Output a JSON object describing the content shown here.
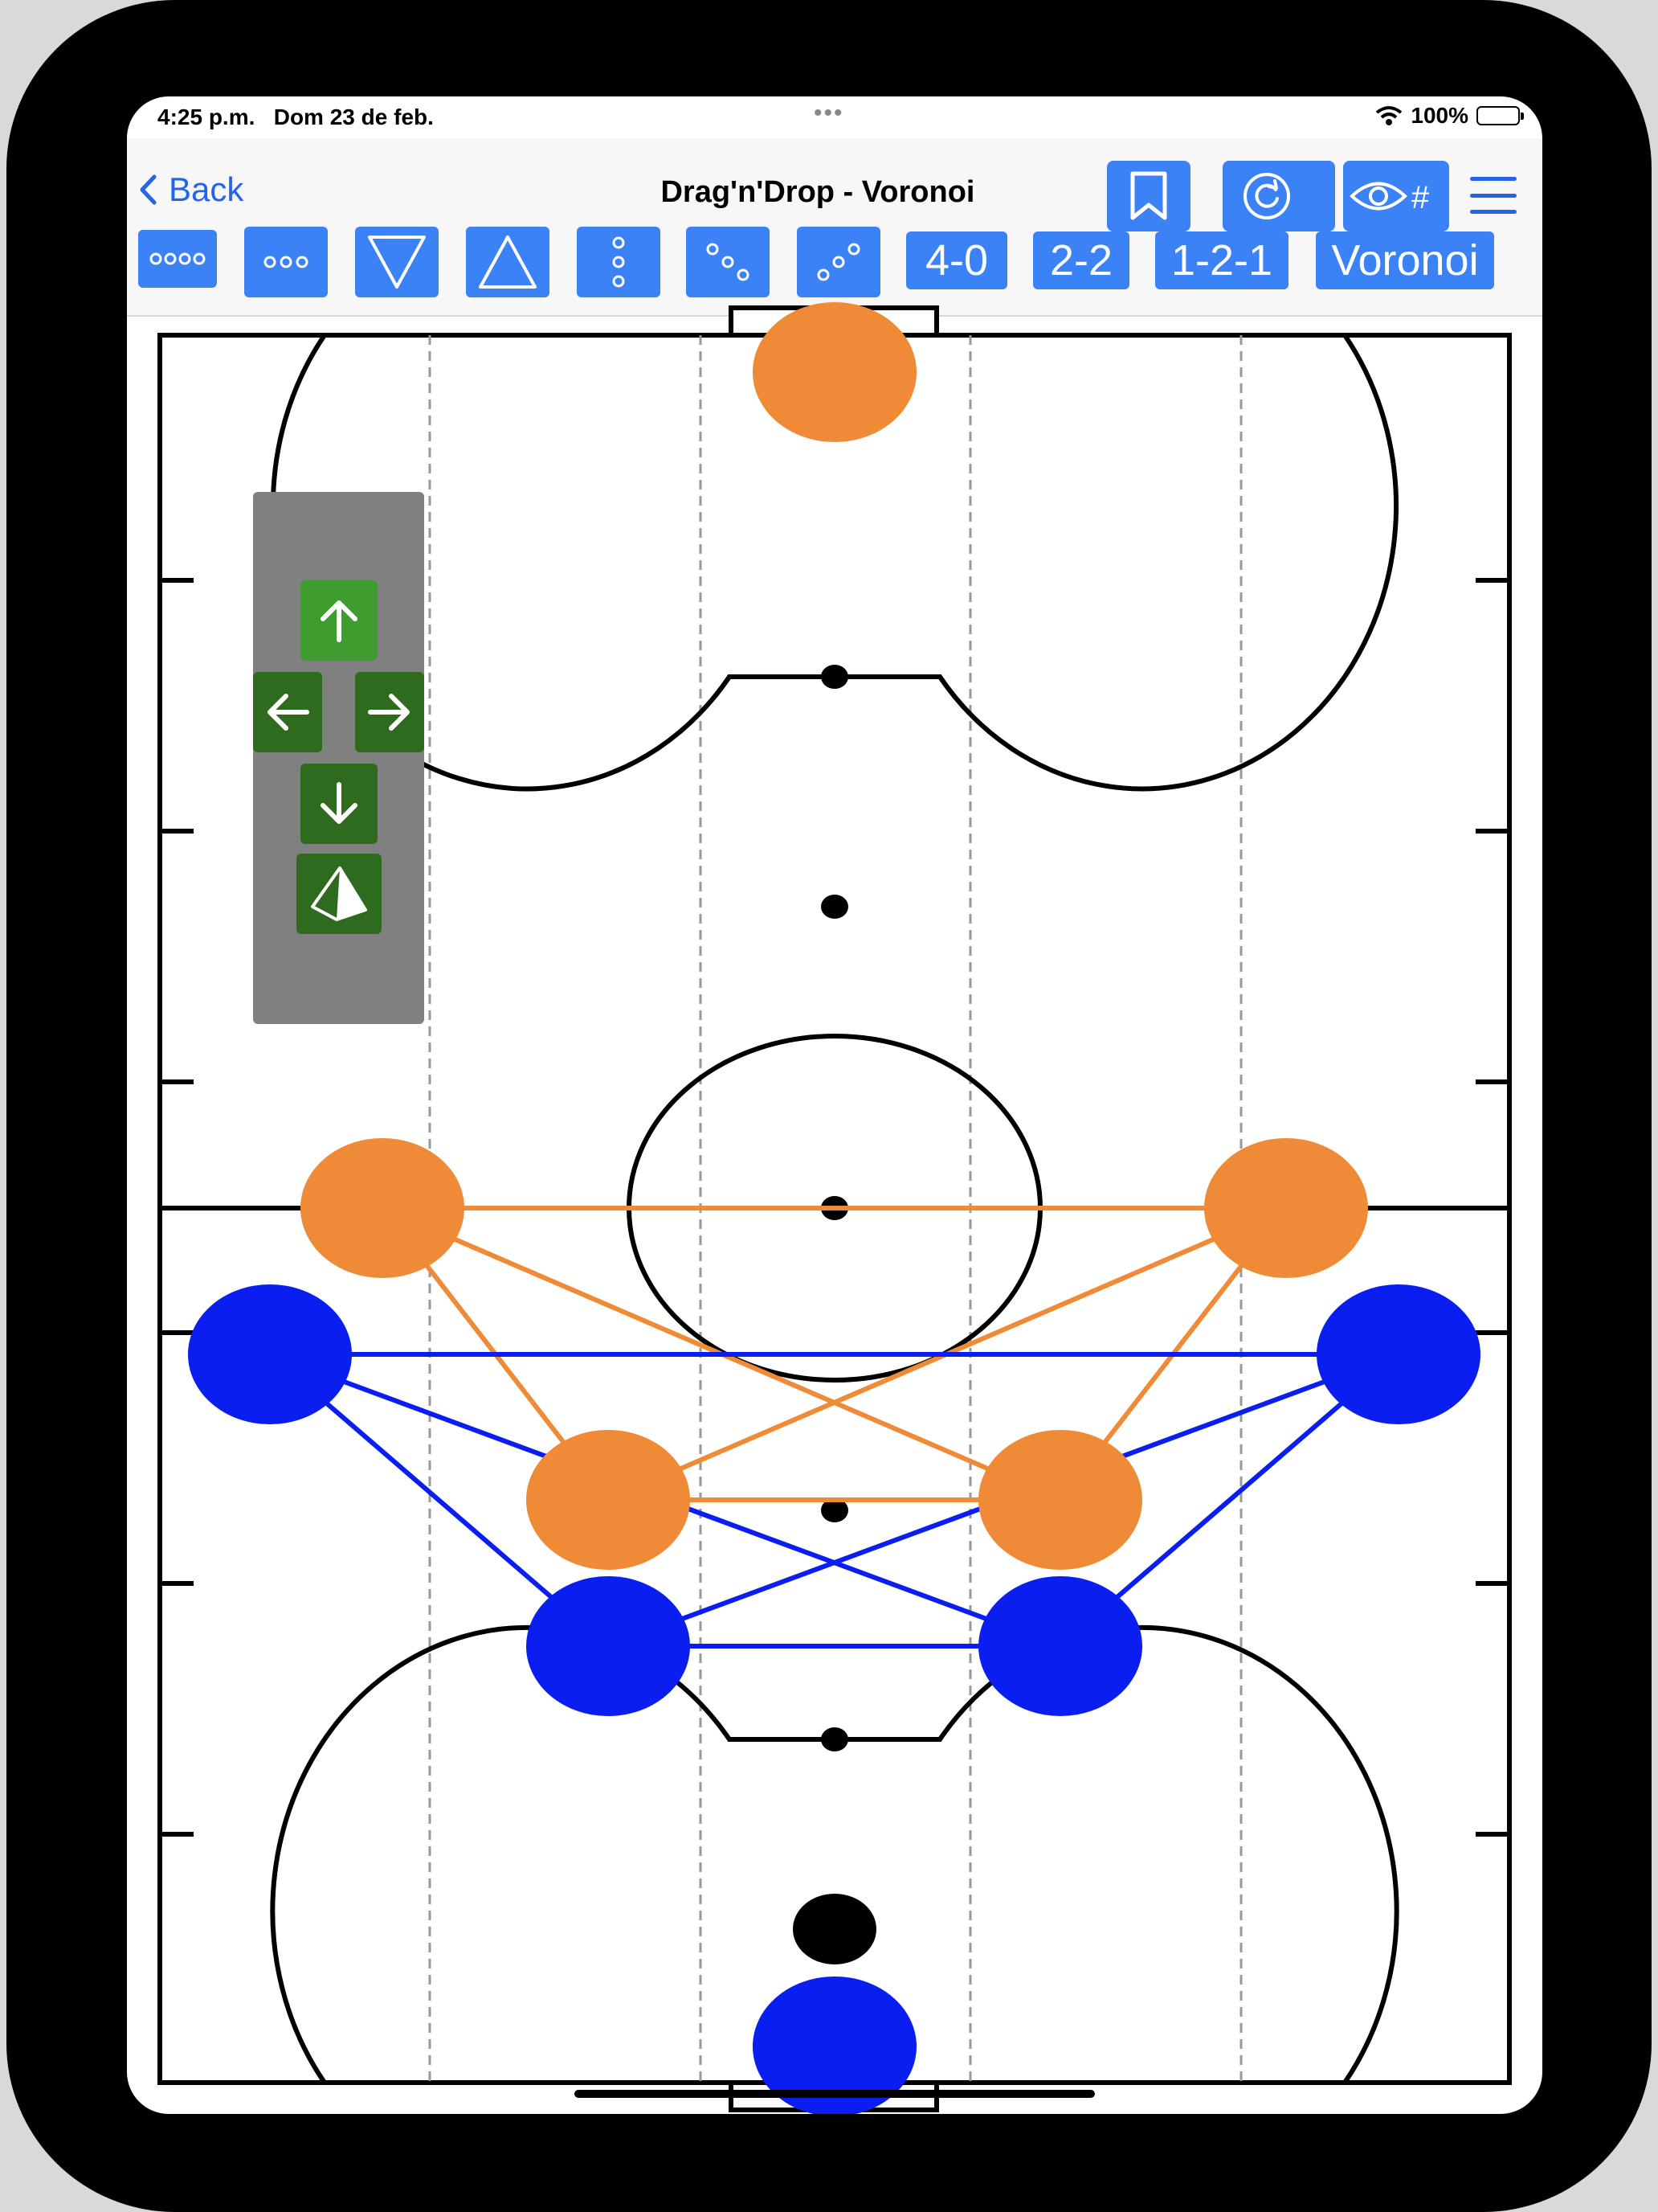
{
  "status_bar": {
    "time": "4:25 p.m.",
    "date": "Dom 23 de feb.",
    "battery": "100%"
  },
  "nav": {
    "back_label": "Back",
    "title": "Drag'n'Drop - Voronoi"
  },
  "toolbar": {
    "btn_4_0": "4-0",
    "btn_2_2": "2-2",
    "btn_1_2_1": "1-2-1",
    "btn_voronoi": "Voronoi"
  },
  "icons": {
    "bookmark": "bookmark-icon",
    "refresh": "refresh-icon",
    "eye_hash": "eye-hash-icon",
    "menu": "menu-icon",
    "arrow_up": "arrow-up-icon",
    "arrow_left": "arrow-left-icon",
    "arrow_right": "arrow-right-icon",
    "arrow_down": "arrow-down-icon",
    "shape": "pyramid-icon"
  },
  "colors": {
    "accent": "#3b82f6",
    "link": "#2563eb",
    "team_orange": "#ef8a36",
    "team_blue": "#0a1ef0",
    "dpad_green": "#2f6b1f"
  }
}
